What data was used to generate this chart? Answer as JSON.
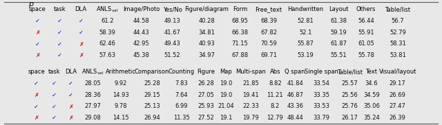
{
  "title": "p",
  "table1_header": [
    "space",
    "task",
    "DLA",
    "ANLSval",
    "Image/Photo",
    "Yes/No",
    "Figure/diagram",
    "Form",
    "Free_text",
    "Handwritten",
    "Layout",
    "Others",
    "Table/list"
  ],
  "table1_anls_subscript": "val",
  "table1_rows": [
    {
      "space": true,
      "task": true,
      "DLA": true,
      "vals": [
        61.2,
        44.58,
        49.13,
        40.28,
        68.95,
        68.39,
        52.81,
        61.38,
        56.44,
        56.7
      ]
    },
    {
      "space": false,
      "task": true,
      "DLA": true,
      "vals": [
        58.39,
        44.43,
        41.67,
        34.81,
        66.38,
        67.82,
        52.1,
        59.19,
        55.91,
        52.79
      ]
    },
    {
      "space": true,
      "task": true,
      "DLA": false,
      "vals": [
        62.46,
        42.95,
        49.43,
        40.93,
        71.15,
        70.59,
        55.87,
        61.87,
        61.05,
        58.31
      ]
    },
    {
      "space": false,
      "task": true,
      "DLA": false,
      "vals": [
        57.63,
        45.38,
        51.52,
        34.97,
        67.88,
        69.71,
        53.19,
        55.51,
        55.78,
        53.81
      ]
    }
  ],
  "table2_header": [
    "space",
    "task",
    "DLA",
    "ANLSval",
    "Arithmetic",
    "Comparison",
    "Counting",
    "Figure",
    "Map",
    "Multi-span",
    "Abs",
    "Q span",
    "Single span",
    "Table/list",
    "Text",
    "Visual/layout"
  ],
  "table2_rows": [
    {
      "space": true,
      "task": true,
      "DLA": true,
      "vals": [
        28.05,
        9.92,
        25.28,
        7.83,
        26.28,
        19.0,
        21.85,
        8.82,
        41.84,
        33.54,
        25.57,
        34.6,
        29.17
      ]
    },
    {
      "space": false,
      "task": true,
      "DLA": true,
      "vals": [
        28.36,
        14.93,
        29.15,
        7.64,
        27.05,
        19.0,
        19.41,
        11.21,
        46.87,
        33.35,
        25.56,
        34.59,
        26.69
      ]
    },
    {
      "space": true,
      "task": true,
      "DLA": false,
      "vals": [
        27.97,
        9.78,
        25.13,
        6.99,
        25.93,
        21.04,
        22.33,
        8.2,
        43.36,
        33.53,
        25.76,
        35.06,
        27.47
      ]
    },
    {
      "space": false,
      "task": true,
      "DLA": false,
      "vals": [
        29.08,
        14.15,
        26.94,
        11.35,
        27.52,
        19.1,
        19.79,
        12.79,
        48.44,
        33.79,
        26.17,
        35.24,
        26.39
      ]
    }
  ],
  "check_color": "#0000cc",
  "cross_color": "#cc0000",
  "bg_color": "#e8e8e8",
  "font_size": 6.0,
  "header_font_size": 6.0
}
